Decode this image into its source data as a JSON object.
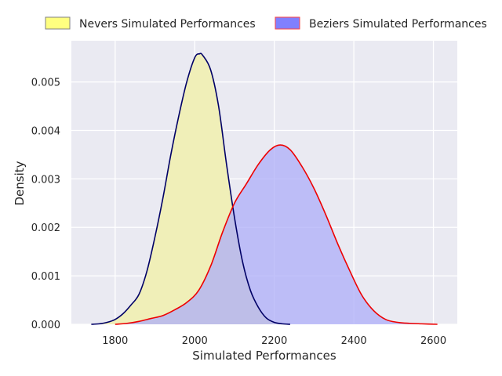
{
  "chart_data": {
    "type": "area",
    "title": "",
    "xlabel": "Simulated Performances",
    "ylabel": "Density",
    "xlim": [
      1690,
      2660
    ],
    "ylim": [
      0,
      0.00585
    ],
    "xticks": [
      1800,
      2000,
      2200,
      2400,
      2600
    ],
    "xtick_labels": [
      "1800",
      "2000",
      "2200",
      "2400",
      "2600"
    ],
    "yticks": [
      0,
      0.001,
      0.002,
      0.003,
      0.004,
      0.005
    ],
    "ytick_labels": [
      "0.000",
      "0.001",
      "0.002",
      "0.003",
      "0.004",
      "0.005"
    ],
    "grid": true,
    "legend_position": "top",
    "series": [
      {
        "name": "Nevers Simulated Performances",
        "fill_color": "#f0efb8",
        "legend_fill": "#ffff80",
        "line_color": "#000066",
        "points": [
          [
            1740,
            0
          ],
          [
            1760,
            1e-05
          ],
          [
            1780,
            4e-05
          ],
          [
            1800,
            0.0001
          ],
          [
            1820,
            0.00022
          ],
          [
            1840,
            0.0004
          ],
          [
            1860,
            0.00062
          ],
          [
            1880,
            0.0011
          ],
          [
            1900,
            0.0018
          ],
          [
            1920,
            0.0026
          ],
          [
            1940,
            0.0035
          ],
          [
            1960,
            0.0043
          ],
          [
            1980,
            0.005
          ],
          [
            2000,
            0.0055
          ],
          [
            2012,
            0.00558
          ],
          [
            2020,
            0.00555
          ],
          [
            2040,
            0.00525
          ],
          [
            2060,
            0.0045
          ],
          [
            2080,
            0.0033
          ],
          [
            2100,
            0.0022
          ],
          [
            2120,
            0.0013
          ],
          [
            2140,
            0.0007
          ],
          [
            2160,
            0.00035
          ],
          [
            2180,
            0.00013
          ],
          [
            2200,
            4e-05
          ],
          [
            2220,
            1e-05
          ],
          [
            2240,
            0
          ]
        ]
      },
      {
        "name": "Beziers Simulated Performances",
        "fill_color": "#adadf8",
        "legend_fill": "#8080ff",
        "line_color": "#ee0000",
        "points": [
          [
            1800,
            0
          ],
          [
            1830,
            2e-05
          ],
          [
            1860,
            6e-05
          ],
          [
            1890,
            0.00012
          ],
          [
            1920,
            0.00018
          ],
          [
            1950,
            0.0003
          ],
          [
            1980,
            0.00045
          ],
          [
            2010,
            0.0007
          ],
          [
            2040,
            0.0012
          ],
          [
            2070,
            0.0019
          ],
          [
            2100,
            0.0025
          ],
          [
            2130,
            0.0029
          ],
          [
            2160,
            0.0033
          ],
          [
            2190,
            0.0036
          ],
          [
            2215,
            0.0037
          ],
          [
            2240,
            0.0036
          ],
          [
            2270,
            0.00325
          ],
          [
            2300,
            0.0028
          ],
          [
            2330,
            0.00225
          ],
          [
            2360,
            0.00165
          ],
          [
            2390,
            0.0011
          ],
          [
            2420,
            0.0006
          ],
          [
            2450,
            0.00028
          ],
          [
            2480,
            0.0001
          ],
          [
            2510,
            4e-05
          ],
          [
            2540,
            2e-05
          ],
          [
            2570,
            1e-05
          ],
          [
            2610,
            0
          ]
        ]
      }
    ]
  }
}
